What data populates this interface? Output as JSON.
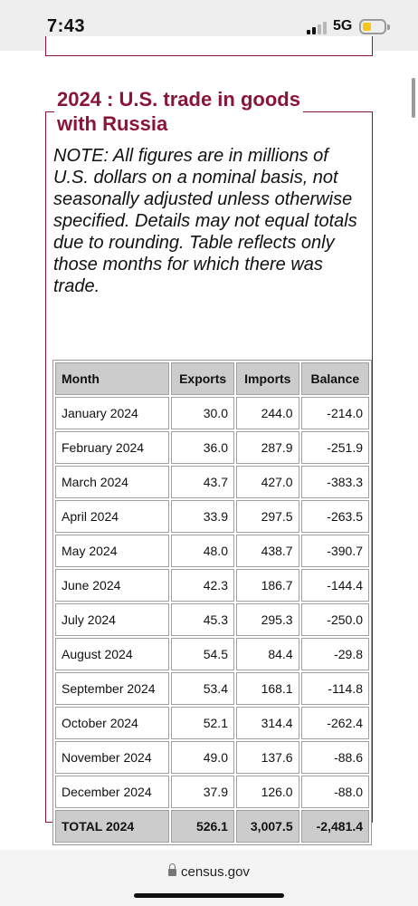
{
  "status_bar": {
    "time": "7:43",
    "network": "5G"
  },
  "section": {
    "title": "2024 : U.S. trade in goods\nwith Russia",
    "note": "NOTE: All figures are in millions of U.S. dollars on a nominal basis, not seasonally adjusted unless otherwise specified. Details may not equal totals due to rounding. Table reflects only those months for which there was trade."
  },
  "table": {
    "headers": [
      "Month",
      "Exports",
      "Imports",
      "Balance"
    ],
    "rows": [
      [
        "January 2024",
        "30.0",
        "244.0",
        "-214.0"
      ],
      [
        "February 2024",
        "36.0",
        "287.9",
        "-251.9"
      ],
      [
        "March 2024",
        "43.7",
        "427.0",
        "-383.3"
      ],
      [
        "April 2024",
        "33.9",
        "297.5",
        "-263.5"
      ],
      [
        "May 2024",
        "48.0",
        "438.7",
        "-390.7"
      ],
      [
        "June 2024",
        "42.3",
        "186.7",
        "-144.4"
      ],
      [
        "July 2024",
        "45.3",
        "295.3",
        "-250.0"
      ],
      [
        "August 2024",
        "54.5",
        "84.4",
        "-29.8"
      ],
      [
        "September 2024",
        "53.4",
        "168.1",
        "-114.8"
      ],
      [
        "October 2024",
        "52.1",
        "314.4",
        "-262.4"
      ],
      [
        "November 2024",
        "49.0",
        "137.6",
        "-88.6"
      ],
      [
        "December 2024",
        "37.9",
        "126.0",
        "-88.0"
      ]
    ],
    "total": [
      "TOTAL 2024",
      "526.1",
      "3,007.5",
      "-2,481.4"
    ]
  },
  "browser": {
    "url": "census.gov"
  },
  "colors": {
    "accent": "#8a1538",
    "header_bg": "#cccccc",
    "battery": "#f5c518"
  }
}
